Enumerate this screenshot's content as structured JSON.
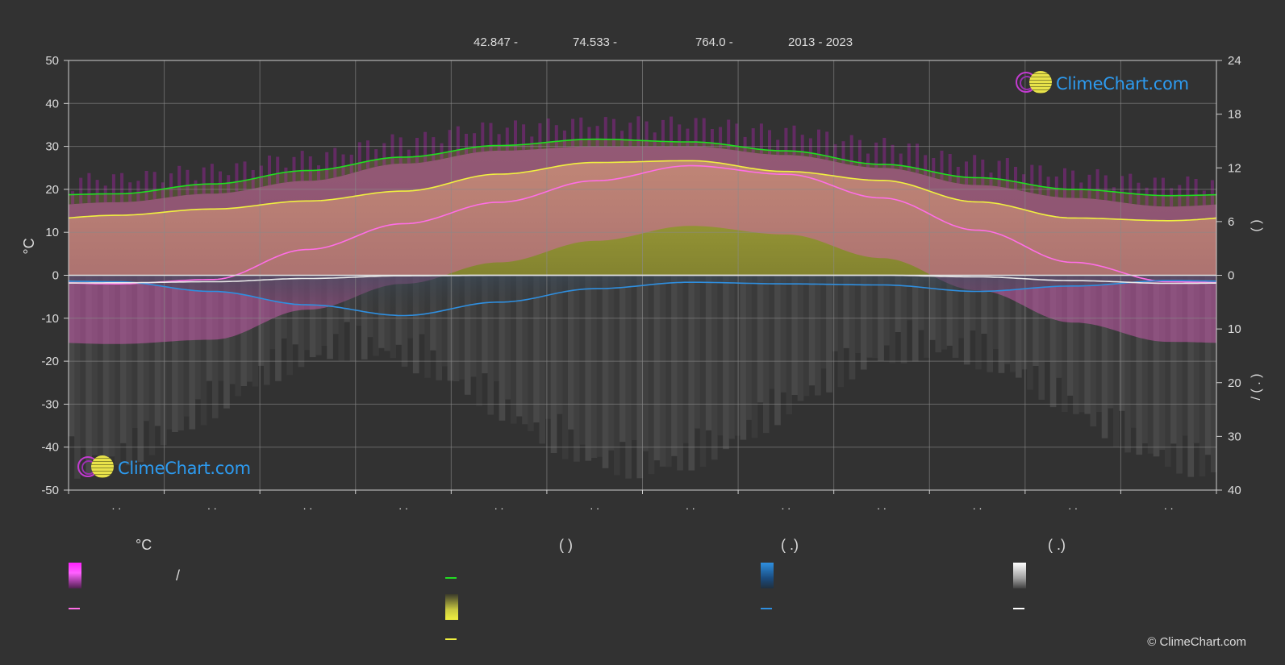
{
  "header": {
    "latitude": "42.847 -",
    "longitude": "74.533 -",
    "elevation": "764.0 -",
    "years": "2013 - 2023"
  },
  "logo_text": "ClimeChart.com",
  "copyright": "© ClimeChart.com",
  "legend": {
    "col1_header": "°C",
    "col2_header": "(          )",
    "col3_header": "(   .)",
    "col4_header": "(   .)",
    "col1_slash": "/"
  },
  "chart_data": {
    "type": "area",
    "x_tick_labels": [
      ". .",
      ". .",
      ". .",
      ". .",
      ". .",
      ". .",
      ". .",
      ". .",
      ". .",
      ". .",
      ". .",
      ". ."
    ],
    "y_left": {
      "label": "°C",
      "ticks": [
        50,
        40,
        30,
        20,
        10,
        0,
        -10,
        -20,
        -30,
        -40,
        -50
      ],
      "range": [
        -50,
        50
      ]
    },
    "y_right_top": {
      "ticks": [
        24,
        18,
        12,
        6,
        0
      ],
      "range": [
        0,
        24
      ],
      "label": "(    )"
    },
    "y_right_bottom": {
      "ticks": [
        0,
        10,
        20,
        30,
        40
      ],
      "range": [
        0,
        40
      ],
      "label": "/    (   .   )"
    },
    "grid": true,
    "series": [
      {
        "key": "daylight",
        "color": "#22dd22",
        "axis": "hours",
        "values": [
          9.1,
          10.2,
          11.7,
          13.2,
          14.5,
          15.2,
          14.9,
          13.9,
          12.4,
          10.9,
          9.6,
          8.9
        ]
      },
      {
        "key": "sunshine",
        "color": "#f0f040",
        "axis": "hours",
        "values": [
          6.7,
          7.4,
          8.3,
          9.4,
          11.3,
          12.6,
          12.8,
          11.6,
          10.6,
          8.2,
          6.4,
          6.1
        ]
      },
      {
        "key": "temp_max",
        "color": "#c8c832",
        "axis": "celsius",
        "values": [
          17,
          19,
          22,
          26,
          29,
          30,
          30,
          28,
          25,
          21,
          18,
          16
        ]
      },
      {
        "key": "temp_mean",
        "color": "#ff6ee6",
        "axis": "celsius",
        "values": [
          -2.0,
          -1.0,
          6.0,
          12.0,
          17.0,
          22.0,
          25.5,
          23.5,
          18.0,
          10.5,
          3.0,
          -1.5
        ]
      },
      {
        "key": "precipitation",
        "color": "#2f8fe0",
        "axis": "mm",
        "values": [
          1.2,
          3.0,
          5.5,
          7.5,
          5.0,
          2.5,
          1.3,
          1.6,
          1.8,
          3.0,
          2.0,
          1.0
        ]
      },
      {
        "key": "snow",
        "color": "#dddddd",
        "axis": "mm",
        "values": [
          1.4,
          1.2,
          0.6,
          0.1,
          0.0,
          0.0,
          0.0,
          0.0,
          0.0,
          0.3,
          1.0,
          1.5
        ]
      }
    ]
  }
}
